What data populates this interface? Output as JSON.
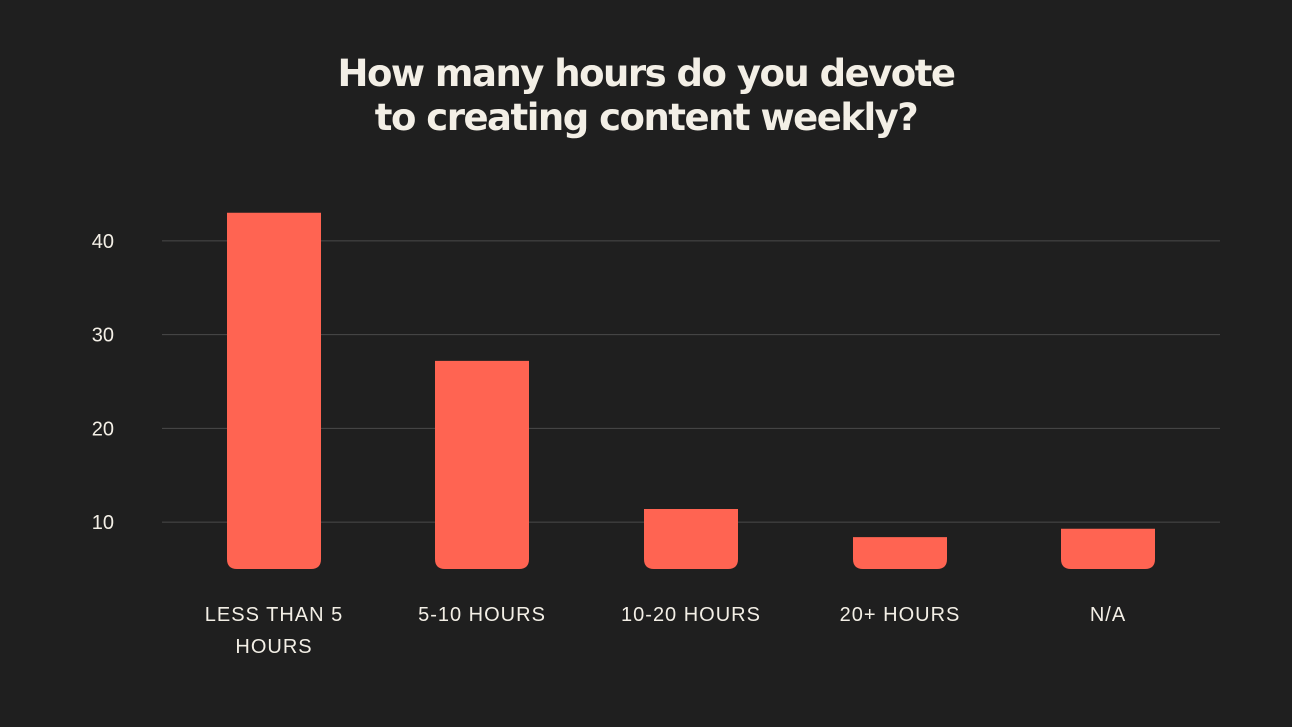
{
  "chart_data": {
    "type": "bar",
    "title_lines": [
      "How many hours do you devote",
      "to creating content weekly?"
    ],
    "categories": [
      [
        "LESS THAN 5",
        "HOURS"
      ],
      [
        "5-10 HOURS"
      ],
      [
        "10-20 HOURS"
      ],
      [
        "20+ HOURS"
      ],
      [
        "N/A"
      ]
    ],
    "values": [
      43,
      27.2,
      11.4,
      8.4,
      9.3
    ],
    "yticks": [
      10,
      20,
      30,
      40
    ],
    "ylim": [
      5,
      43
    ],
    "grid": true,
    "colors": {
      "bar": "#ff6452",
      "background": "#1f1f1f",
      "grid": "#4a4a4a",
      "text": "#f3efe6"
    }
  }
}
